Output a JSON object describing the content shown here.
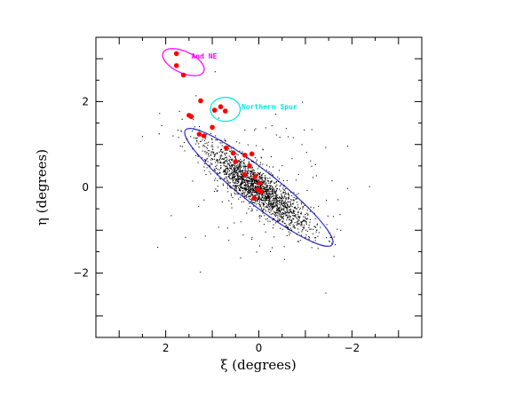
{
  "chart_data": {
    "type": "scatter",
    "xlabel": "ξ (degrees)",
    "ylabel": "η (degrees)",
    "xlim": [
      3.5,
      -3.5
    ],
    "ylim": [
      -3.5,
      3.5
    ],
    "x_reversed": true,
    "x_ticks": [
      2,
      0,
      -2
    ],
    "x_tick_labels": [
      "2",
      "0",
      "−2"
    ],
    "y_ticks": [
      -2,
      0,
      2
    ],
    "y_tick_labels": [
      "−2",
      "0",
      "2"
    ],
    "grid": false,
    "legend": "none",
    "series": [
      {
        "color": "#000000",
        "marker": "dot",
        "distribution": {
          "center": [
            0.05,
            0.0
          ],
          "position_angle_deg": 38,
          "sigma_major": 0.7,
          "sigma_minor": 0.18,
          "n_points": 1900,
          "background_points": 140
        }
      },
      {
        "color": "#ff0000",
        "marker": "filled-circle",
        "points": [
          [
            1.77,
            3.12
          ],
          [
            1.77,
            2.84
          ],
          [
            1.62,
            2.62
          ],
          [
            1.25,
            2.02
          ],
          [
            1.5,
            1.68
          ],
          [
            1.45,
            1.65
          ],
          [
            1.28,
            1.24
          ],
          [
            1.18,
            1.2
          ],
          [
            0.95,
            1.8
          ],
          [
            0.82,
            1.88
          ],
          [
            0.72,
            1.78
          ],
          [
            1.0,
            1.4
          ],
          [
            0.7,
            0.92
          ],
          [
            0.55,
            0.8
          ],
          [
            0.3,
            0.75
          ],
          [
            0.15,
            0.78
          ],
          [
            0.5,
            0.6
          ],
          [
            0.2,
            0.5
          ],
          [
            0.3,
            0.3
          ],
          [
            0.08,
            0.25
          ],
          [
            -0.02,
            0.1
          ],
          [
            0.03,
            -0.05
          ],
          [
            -0.05,
            -0.1
          ],
          [
            0.1,
            -0.25
          ]
        ]
      }
    ],
    "annotations": [
      {
        "text": "And NE",
        "color": "#ff00ff",
        "x": 1.45,
        "y": 3.0
      },
      {
        "text": "Northern Spur",
        "color": "#00e5e5",
        "x": 0.37,
        "y": 1.82
      }
    ],
    "regions": [
      {
        "shape": "ellipse",
        "color": "#3333cc",
        "center": [
          0.0,
          0.0
        ],
        "semi_major": 2.0,
        "semi_minor": 0.4,
        "position_angle_deg": 38
      },
      {
        "shape": "ellipse",
        "color": "#ff00ff",
        "center": [
          1.62,
          2.92
        ],
        "semi_major": 0.48,
        "semi_minor": 0.25,
        "position_angle_deg": 25
      },
      {
        "shape": "ellipse",
        "color": "#00e5e5",
        "center": [
          0.72,
          1.82
        ],
        "semi_major": 0.32,
        "semi_minor": 0.28,
        "position_angle_deg": 0
      }
    ]
  }
}
